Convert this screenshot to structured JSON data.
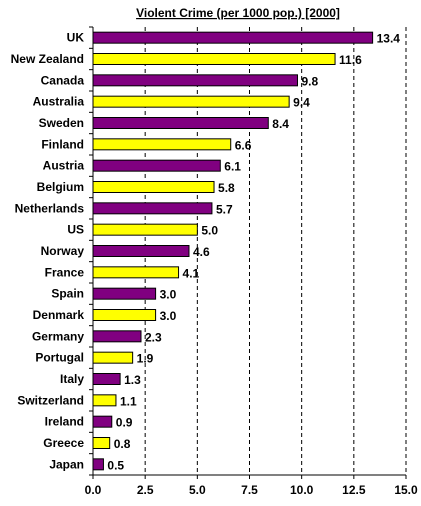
{
  "chart_data": {
    "type": "bar",
    "orientation": "horizontal",
    "title": "Violent Crime (per 1000 pop.) [2000]",
    "xlabel": "",
    "ylabel": "",
    "xlim": [
      0,
      15
    ],
    "xticks": [
      "0.0",
      "2.5",
      "5.0",
      "7.5",
      "10.0",
      "12.5",
      "15.0"
    ],
    "grid": "vertical-dashed",
    "legend": "none",
    "colors": {
      "odd": "#800080",
      "even": "#ffff00",
      "outline": "#000000"
    },
    "categories": [
      "UK",
      "New Zealand",
      "Canada",
      "Australia",
      "Sweden",
      "Finland",
      "Austria",
      "Belgium",
      "Netherlands",
      "US",
      "Norway",
      "France",
      "Spain",
      "Denmark",
      "Germany",
      "Portugal",
      "Italy",
      "Switzerland",
      "Ireland",
      "Greece",
      "Japan"
    ],
    "values": [
      13.4,
      11.6,
      9.8,
      9.4,
      8.4,
      6.6,
      6.1,
      5.8,
      5.7,
      5.0,
      4.6,
      4.1,
      3.0,
      3.0,
      2.3,
      1.9,
      1.3,
      1.1,
      0.9,
      0.8,
      0.5
    ],
    "value_labels": [
      "13.4",
      "11.6",
      "9.8",
      "9.4",
      "8.4",
      "6.6",
      "6.1",
      "5.8",
      "5.7",
      "5.0",
      "4.6",
      "4.1",
      "3.0",
      "3.0",
      "2.3",
      "1.9",
      "1.3",
      "1.1",
      "0.9",
      "0.8",
      "0.5"
    ]
  }
}
